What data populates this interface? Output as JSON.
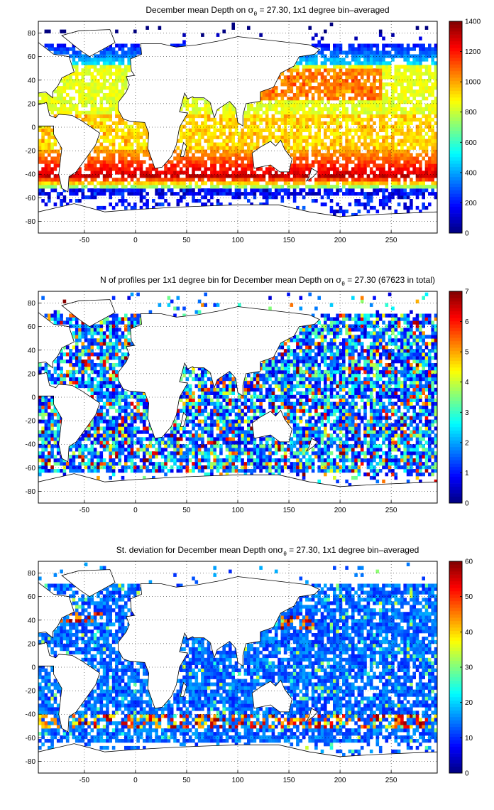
{
  "panels": [
    {
      "id": "mean-depth",
      "title_pre": "December mean Depth on ",
      "title_sym": "σ",
      "title_sub": "θ",
      "title_post": " = 27.30, 1x1 degree bin–averaged",
      "colorbar": {
        "min": 0,
        "max": 1400,
        "ticks": [
          "0",
          "200",
          "400",
          "600",
          "800",
          "1000",
          "1200",
          "1400"
        ]
      },
      "mode": "depth"
    },
    {
      "id": "profile-count",
      "title_pre": "N of profiles per 1x1 degree bin for December mean Depth on ",
      "title_sym": "σ",
      "title_sub": "θ",
      "title_post": " = 27.30 (67623 in total)",
      "colorbar": {
        "min": 0,
        "max": 7,
        "ticks": [
          "0",
          "1",
          "2",
          "3",
          "4",
          "5",
          "6",
          "7"
        ]
      },
      "mode": "count"
    },
    {
      "id": "std-deviation",
      "title_pre": "St. deviation for December mean Depth on",
      "title_sym": "σ",
      "title_sub": "θ",
      "title_post": " = 27.30, 1x1 degree bin–averaged",
      "colorbar": {
        "min": 0,
        "max": 60,
        "ticks": [
          "0",
          "10",
          "20",
          "30",
          "40",
          "50",
          "60"
        ]
      },
      "mode": "std"
    }
  ],
  "axes": {
    "lon_range": [
      -95,
      295
    ],
    "lat_range": [
      -90,
      90
    ],
    "x_ticks": [
      "-50",
      "0",
      "50",
      "100",
      "150",
      "200",
      "250"
    ],
    "y_ticks": [
      "-80",
      "-60",
      "-40",
      "-20",
      "0",
      "20",
      "40",
      "60",
      "80"
    ]
  },
  "colormap": "jet"
}
